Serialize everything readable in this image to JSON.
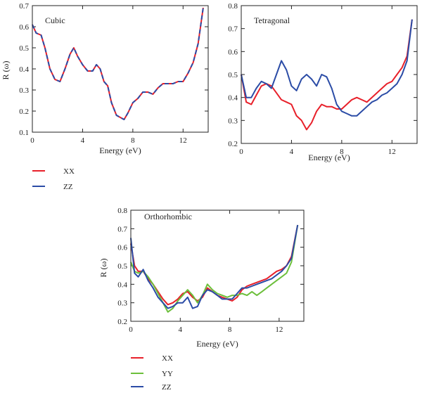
{
  "chart_data": [
    {
      "type": "line",
      "title": "Cubic",
      "xlabel": "Energy (eV)",
      "ylabel": "R (ω)",
      "xlim": [
        0,
        14
      ],
      "ylim": [
        0.1,
        0.7
      ],
      "xticks": [
        0,
        4,
        8,
        12
      ],
      "yticks": [
        0.1,
        0.2,
        0.3,
        0.4,
        0.5,
        0.6,
        0.7
      ],
      "legend": "below",
      "series": [
        {
          "name": "XX",
          "color": "#e8202a",
          "dashed": false,
          "x": [
            0,
            0.3,
            0.7,
            1.0,
            1.4,
            1.8,
            2.2,
            2.6,
            3.0,
            3.3,
            3.6,
            4.0,
            4.4,
            4.8,
            5.1,
            5.4,
            5.7,
            6.0,
            6.3,
            6.7,
            7.0,
            7.3,
            7.6,
            8.0,
            8.4,
            8.8,
            9.2,
            9.6,
            10.0,
            10.4,
            10.8,
            11.2,
            11.6,
            12.0,
            12.4,
            12.8,
            13.2,
            13.6
          ],
          "y": [
            0.61,
            0.57,
            0.56,
            0.5,
            0.4,
            0.35,
            0.34,
            0.4,
            0.47,
            0.5,
            0.46,
            0.42,
            0.39,
            0.39,
            0.42,
            0.4,
            0.34,
            0.32,
            0.24,
            0.18,
            0.17,
            0.16,
            0.19,
            0.24,
            0.26,
            0.29,
            0.29,
            0.28,
            0.31,
            0.33,
            0.33,
            0.33,
            0.34,
            0.34,
            0.38,
            0.43,
            0.52,
            0.69
          ]
        },
        {
          "name": "ZZ",
          "color": "#2b4ca6",
          "dashed": true,
          "x": [
            0,
            0.3,
            0.7,
            1.0,
            1.4,
            1.8,
            2.2,
            2.6,
            3.0,
            3.3,
            3.6,
            4.0,
            4.4,
            4.8,
            5.1,
            5.4,
            5.7,
            6.0,
            6.3,
            6.7,
            7.0,
            7.3,
            7.6,
            8.0,
            8.4,
            8.8,
            9.2,
            9.6,
            10.0,
            10.4,
            10.8,
            11.2,
            11.6,
            12.0,
            12.4,
            12.8,
            13.2,
            13.6
          ],
          "y": [
            0.61,
            0.57,
            0.56,
            0.5,
            0.4,
            0.35,
            0.34,
            0.4,
            0.47,
            0.5,
            0.46,
            0.42,
            0.39,
            0.39,
            0.42,
            0.4,
            0.34,
            0.32,
            0.24,
            0.18,
            0.17,
            0.16,
            0.19,
            0.24,
            0.26,
            0.29,
            0.29,
            0.28,
            0.31,
            0.33,
            0.33,
            0.33,
            0.34,
            0.34,
            0.38,
            0.43,
            0.52,
            0.69
          ]
        }
      ]
    },
    {
      "type": "line",
      "title": "Tetragonal",
      "xlabel": "Energy (eV)",
      "ylabel": "",
      "xlim": [
        0,
        14
      ],
      "ylim": [
        0.2,
        0.8
      ],
      "xticks": [
        0,
        4,
        8,
        12
      ],
      "yticks": [
        0.2,
        0.3,
        0.4,
        0.5,
        0.6,
        0.7,
        0.8
      ],
      "legend": "none",
      "series": [
        {
          "name": "XX",
          "color": "#e8202a",
          "dashed": false,
          "x": [
            0,
            0.4,
            0.8,
            1.2,
            1.6,
            2.0,
            2.4,
            2.8,
            3.2,
            3.6,
            4.0,
            4.4,
            4.8,
            5.2,
            5.6,
            6.0,
            6.4,
            6.8,
            7.2,
            7.6,
            8.0,
            8.4,
            8.8,
            9.2,
            9.6,
            10.0,
            10.4,
            10.8,
            11.2,
            11.6,
            12.0,
            12.4,
            12.8,
            13.2,
            13.6
          ],
          "y": [
            0.5,
            0.38,
            0.37,
            0.41,
            0.45,
            0.46,
            0.45,
            0.42,
            0.39,
            0.38,
            0.37,
            0.32,
            0.3,
            0.26,
            0.29,
            0.34,
            0.37,
            0.36,
            0.36,
            0.35,
            0.35,
            0.37,
            0.39,
            0.4,
            0.39,
            0.38,
            0.4,
            0.42,
            0.44,
            0.46,
            0.47,
            0.5,
            0.53,
            0.58,
            0.74
          ]
        },
        {
          "name": "ZZ",
          "color": "#2b4ca6",
          "dashed": false,
          "x": [
            0,
            0.4,
            0.8,
            1.2,
            1.6,
            2.0,
            2.4,
            2.8,
            3.2,
            3.6,
            4.0,
            4.4,
            4.8,
            5.2,
            5.6,
            6.0,
            6.4,
            6.8,
            7.2,
            7.6,
            8.0,
            8.4,
            8.8,
            9.2,
            9.6,
            10.0,
            10.4,
            10.8,
            11.2,
            11.6,
            12.0,
            12.4,
            12.8,
            13.2,
            13.6
          ],
          "y": [
            0.5,
            0.4,
            0.4,
            0.44,
            0.47,
            0.46,
            0.44,
            0.5,
            0.56,
            0.52,
            0.45,
            0.43,
            0.48,
            0.5,
            0.48,
            0.45,
            0.5,
            0.49,
            0.44,
            0.37,
            0.34,
            0.33,
            0.32,
            0.32,
            0.34,
            0.36,
            0.38,
            0.39,
            0.41,
            0.42,
            0.44,
            0.46,
            0.5,
            0.56,
            0.74
          ]
        }
      ]
    },
    {
      "type": "line",
      "title": "Orthorhombic",
      "xlabel": "Energy (eV)",
      "ylabel": "R (ω)",
      "xlim": [
        0,
        14
      ],
      "ylim": [
        0.2,
        0.8
      ],
      "xticks": [
        0,
        4,
        8,
        12
      ],
      "yticks": [
        0.2,
        0.3,
        0.4,
        0.5,
        0.6,
        0.7,
        0.8
      ],
      "legend": "below",
      "series": [
        {
          "name": "XX",
          "color": "#e8202a",
          "dashed": false,
          "x": [
            0,
            0.3,
            0.6,
            1.0,
            1.4,
            1.8,
            2.2,
            2.6,
            3.0,
            3.4,
            3.8,
            4.2,
            4.6,
            5.0,
            5.4,
            5.8,
            6.2,
            6.6,
            7.0,
            7.4,
            7.8,
            8.2,
            8.6,
            9.0,
            9.4,
            9.8,
            10.2,
            10.6,
            11.0,
            11.4,
            11.8,
            12.2,
            12.6,
            13.0,
            13.5
          ],
          "y": [
            0.62,
            0.5,
            0.47,
            0.47,
            0.43,
            0.4,
            0.36,
            0.32,
            0.29,
            0.3,
            0.32,
            0.35,
            0.36,
            0.33,
            0.31,
            0.33,
            0.38,
            0.36,
            0.34,
            0.33,
            0.32,
            0.31,
            0.33,
            0.37,
            0.39,
            0.4,
            0.41,
            0.42,
            0.43,
            0.45,
            0.47,
            0.48,
            0.5,
            0.55,
            0.72
          ]
        },
        {
          "name": "YY",
          "color": "#6cbf3b",
          "dashed": false,
          "x": [
            0,
            0.3,
            0.6,
            1.0,
            1.4,
            1.8,
            2.2,
            2.6,
            3.0,
            3.4,
            3.8,
            4.2,
            4.6,
            5.0,
            5.4,
            5.8,
            6.2,
            6.6,
            7.0,
            7.4,
            7.8,
            8.2,
            8.6,
            9.0,
            9.4,
            9.8,
            10.2,
            10.6,
            11.0,
            11.4,
            11.8,
            12.2,
            12.6,
            13.0,
            13.5
          ],
          "y": [
            0.52,
            0.47,
            0.46,
            0.47,
            0.44,
            0.4,
            0.35,
            0.3,
            0.25,
            0.27,
            0.31,
            0.34,
            0.37,
            0.34,
            0.3,
            0.34,
            0.4,
            0.37,
            0.35,
            0.34,
            0.33,
            0.34,
            0.34,
            0.35,
            0.34,
            0.36,
            0.34,
            0.36,
            0.38,
            0.4,
            0.42,
            0.44,
            0.46,
            0.52,
            0.72
          ]
        },
        {
          "name": "ZZ",
          "color": "#2b4ca6",
          "dashed": false,
          "x": [
            0,
            0.3,
            0.6,
            1.0,
            1.4,
            1.8,
            2.2,
            2.6,
            3.0,
            3.4,
            3.8,
            4.2,
            4.6,
            5.0,
            5.4,
            5.8,
            6.2,
            6.6,
            7.0,
            7.4,
            7.8,
            8.2,
            8.6,
            9.0,
            9.4,
            9.8,
            10.2,
            10.6,
            11.0,
            11.4,
            11.8,
            12.2,
            12.6,
            13.0,
            13.5
          ],
          "y": [
            0.65,
            0.46,
            0.44,
            0.48,
            0.42,
            0.38,
            0.33,
            0.3,
            0.27,
            0.28,
            0.3,
            0.3,
            0.33,
            0.27,
            0.28,
            0.34,
            0.37,
            0.36,
            0.34,
            0.32,
            0.32,
            0.32,
            0.35,
            0.38,
            0.38,
            0.39,
            0.4,
            0.41,
            0.42,
            0.43,
            0.45,
            0.47,
            0.5,
            0.54,
            0.72
          ]
        }
      ]
    }
  ]
}
